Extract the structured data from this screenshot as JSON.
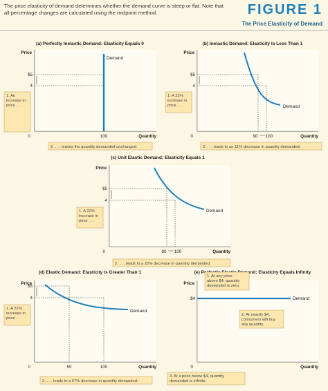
{
  "intro_text": "The price elasticity of demand determines whether the demand curve is steep or flat. Note that all percentage changes are calculated using the midpoint method.",
  "figure_label": "FIGURE 1",
  "figure_title": "The Price Elasticity of Demand",
  "colors": {
    "curve": "#1f7fb8",
    "accent": "#1f7fb8",
    "annotation_fill": "#fce7b1",
    "background": "#fcf6e4"
  },
  "chart_data": [
    {
      "id": "a",
      "type": "line",
      "title": "(a) Perfectly Inelastic Demand: Elasticity Equals 0",
      "xlabel": "Quantity",
      "ylabel": "Price",
      "curve_label": "Demand",
      "prices": [
        5,
        4
      ],
      "price_ticks": [
        "$5",
        "4"
      ],
      "quantities": [
        100,
        100
      ],
      "quantity_ticks": [
        "100"
      ],
      "origin": "0",
      "annotations": [
        "1. An increase in price . . .",
        "2. . . . leaves the quantity demanded unchanged."
      ]
    },
    {
      "id": "b",
      "type": "line",
      "title": "(b) Inelastic Demand: Elasticity Is Less Than 1",
      "xlabel": "Quantity",
      "ylabel": "Price",
      "curve_label": "Demand",
      "prices": [
        5,
        4
      ],
      "price_ticks": [
        "$5",
        "4"
      ],
      "quantities": [
        90,
        100
      ],
      "quantity_ticks": [
        "90",
        "100"
      ],
      "origin": "0",
      "annotations": [
        "1. A 22% increase in price . . .",
        "2. . . . leads to an 11% decrease in quantity demanded."
      ]
    },
    {
      "id": "c",
      "type": "line",
      "title": "(c) Unit Elastic Demand: Elasticity Equals 1",
      "xlabel": "Quantity",
      "ylabel": "Price",
      "curve_label": "Demand",
      "prices": [
        5,
        4
      ],
      "price_ticks": [
        "$5",
        "4"
      ],
      "quantities": [
        80,
        100
      ],
      "quantity_ticks": [
        "80",
        "100"
      ],
      "origin": "0",
      "annotations": [
        "1. A 22% increase in price . . .",
        "2. . . . leads to a 22% decrease in quantity demanded."
      ]
    },
    {
      "id": "d",
      "type": "line",
      "title": "(d) Elastic Demand: Elasticity Is Greater Than 1",
      "xlabel": "Quantity",
      "ylabel": "Price",
      "curve_label": "Demand",
      "prices": [
        5,
        4
      ],
      "price_ticks": [
        "$5",
        "4"
      ],
      "quantities": [
        50,
        100
      ],
      "quantity_ticks": [
        "50",
        "100"
      ],
      "origin": "0",
      "annotations": [
        "1. A 22% increase in price . . .",
        "2. . . . leads to a 67% decrease in quantity demanded."
      ]
    },
    {
      "id": "e",
      "type": "line",
      "title": "(e) Perfectly Elastic Demand: Elasticity Equals Infinity",
      "xlabel": "Quantity",
      "ylabel": "Price",
      "curve_label": "Demand",
      "prices": [
        4
      ],
      "price_ticks": [
        "$4"
      ],
      "origin": "0",
      "annotations": [
        "1. At any price above $4, quantity demanded is zero.",
        "2. At exactly $4, consumers will buy any quantity.",
        "3. At a price below $4, quantity demanded is infinite."
      ]
    }
  ]
}
